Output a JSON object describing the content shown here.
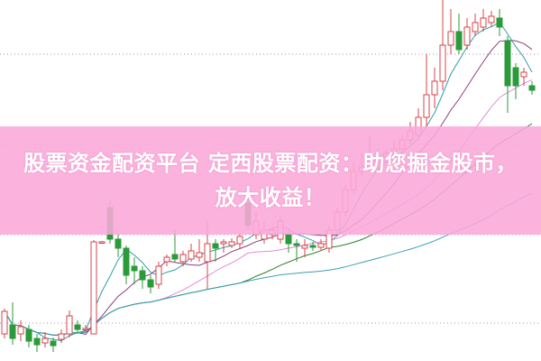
{
  "banner": {
    "line1": "股票资金配资平台 定西股票配资：助您掘金股市，",
    "line2": "放大收益！"
  },
  "chart_data": {
    "type": "candlestick",
    "grid": "dotted horizontal",
    "ylim": [
      0,
      40
    ],
    "colors": {
      "up": "#d8434a",
      "down": "#2b9a3a",
      "ma5": "#2f9fa5",
      "ma10": "#8c3d7e",
      "ma20": "#e48ad9",
      "ma30": "#2f7d2f",
      "ma60": "#3ba0b5",
      "grid": "#b58ab0"
    },
    "moving_averages": [
      5,
      10,
      20,
      30,
      60
    ],
    "candles_ohlc": [
      [
        3.0,
        5.5,
        5.8,
        2.5
      ],
      [
        4.0,
        2.5,
        6.5,
        1.8
      ],
      [
        3.0,
        3.8,
        4.5,
        2.2
      ],
      [
        3.5,
        2.2,
        4.0,
        1.5
      ],
      [
        2.5,
        1.8,
        3.0,
        1.0
      ],
      [
        2.0,
        2.5,
        3.2,
        1.5
      ],
      [
        2.2,
        1.7,
        2.6,
        1.0
      ],
      [
        2.4,
        3.0,
        3.5,
        2.0
      ],
      [
        3.0,
        5.0,
        5.6,
        2.6
      ],
      [
        4.0,
        3.5,
        4.5,
        3.0
      ],
      [
        3.5,
        3.6,
        4.0,
        3.2
      ],
      [
        3.0,
        13.2,
        13.4,
        3.0
      ],
      [
        13.2,
        13.2,
        13.3,
        13.1
      ],
      [
        17.0,
        13.5,
        17.8,
        13.0
      ],
      [
        13.5,
        12.5,
        14.0,
        11.5
      ],
      [
        12.5,
        9.5,
        12.8,
        8.5
      ],
      [
        10.5,
        10.0,
        11.5,
        8.5
      ],
      [
        10.0,
        9.0,
        10.5,
        8.0
      ],
      [
        9.0,
        8.2,
        9.5,
        7.5
      ],
      [
        8.5,
        10.5,
        11.0,
        8.0
      ],
      [
        11.0,
        11.5,
        11.8,
        10.5
      ],
      [
        11.8,
        11.3,
        14.5,
        11.0
      ],
      [
        11.0,
        11.8,
        12.2,
        10.5
      ],
      [
        11.3,
        12.2,
        13.0,
        11.0
      ],
      [
        11.5,
        12.0,
        13.5,
        11.0
      ],
      [
        11.0,
        13.0,
        15.5,
        8.0
      ],
      [
        13.0,
        12.5,
        13.5,
        11.0
      ],
      [
        13.0,
        13.2,
        13.5,
        12.0
      ],
      [
        12.8,
        13.2,
        13.6,
        12.5
      ],
      [
        13.0,
        13.8,
        14.2,
        12.5
      ],
      [
        17.5,
        15.0,
        18.0,
        14.5
      ],
      [
        14.0,
        15.5,
        16.5,
        13.5
      ],
      [
        13.5,
        14.5,
        15.5,
        13.0
      ],
      [
        14.0,
        14.5,
        15.0,
        13.5
      ],
      [
        13.5,
        15.5,
        16.0,
        13.0
      ],
      [
        14.0,
        13.0,
        14.5,
        12.0
      ],
      [
        13.0,
        12.8,
        13.5,
        11.0
      ],
      [
        12.5,
        12.8,
        13.5,
        11.5
      ],
      [
        12.8,
        12.6,
        13.2,
        12.2
      ],
      [
        12.6,
        13.0,
        13.5,
        12.2
      ],
      [
        12.5,
        14.5,
        15.0,
        12.0
      ],
      [
        14.5,
        16.5,
        17.0,
        14.0
      ],
      [
        16.5,
        19.0,
        19.5,
        16.0
      ],
      [
        19.0,
        21.0,
        22.0,
        18.5
      ],
      [
        21.0,
        21.5,
        23.0,
        20.5
      ],
      [
        21.5,
        22.0,
        25.0,
        21.0
      ],
      [
        22.0,
        22.5,
        23.5,
        21.5
      ],
      [
        22.5,
        23.0,
        23.5,
        22.0
      ],
      [
        23.0,
        23.5,
        24.5,
        22.5
      ],
      [
        23.5,
        24.5,
        25.0,
        23.0
      ],
      [
        24.5,
        25.5,
        26.5,
        24.0
      ],
      [
        25.0,
        27.0,
        28.0,
        24.5
      ],
      [
        27.0,
        29.5,
        34.0,
        26.0
      ],
      [
        29.5,
        31.0,
        32.5,
        28.0
      ],
      [
        31.0,
        35.0,
        40.0,
        30.0
      ],
      [
        35.0,
        36.5,
        39.0,
        34.0
      ],
      [
        36.5,
        34.5,
        38.5,
        34.0
      ],
      [
        35.0,
        37.0,
        38.0,
        34.5
      ],
      [
        36.5,
        37.5,
        38.5,
        36.0
      ],
      [
        37.0,
        38.0,
        39.0,
        36.5
      ],
      [
        37.5,
        38.2,
        38.8,
        37.0
      ],
      [
        38.0,
        37.0,
        39.0,
        36.0
      ],
      [
        35.5,
        30.5,
        36.0,
        27.5
      ],
      [
        32.5,
        30.5,
        33.0,
        29.0
      ],
      [
        31.5,
        32.0,
        32.5,
        30.5
      ],
      [
        30.5,
        30.0,
        31.0,
        29.5
      ]
    ],
    "gridlines_y": [
      34,
      24,
      14,
      4.2
    ]
  }
}
